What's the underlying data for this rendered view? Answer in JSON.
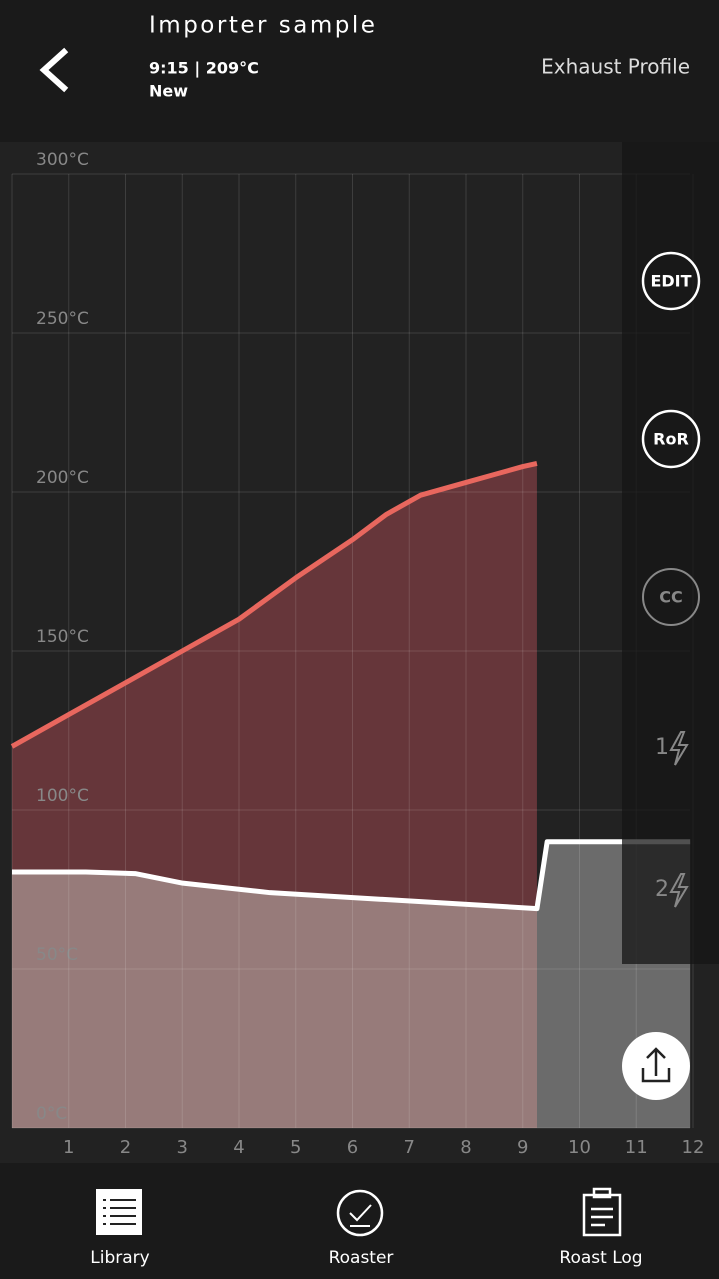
{
  "header": {
    "title": "Importer sample",
    "subtitle": "9:15 | 209°C",
    "status": "New",
    "profile": "Exhaust Profile"
  },
  "chart_data": {
    "type": "line",
    "xlim": [
      0,
      12
    ],
    "xticks": [
      1,
      2,
      3,
      4,
      5,
      6,
      7,
      8,
      9,
      10,
      11,
      12
    ],
    "ylim": [
      0,
      300
    ],
    "yticks": [
      {
        "value": 0,
        "label": "0°C"
      },
      {
        "value": 50,
        "label": "50°C"
      },
      {
        "value": 100,
        "label": "100°C"
      },
      {
        "value": 150,
        "label": "150°C"
      },
      {
        "value": 200,
        "label": "200°C"
      },
      {
        "value": 250,
        "label": "250°C"
      },
      {
        "value": 300,
        "label": "300°C"
      }
    ],
    "grid": true,
    "series": [
      {
        "color": "#e8675e",
        "x": [
          0,
          1,
          2,
          3,
          4,
          5,
          6,
          6.6,
          7.2,
          8,
          8.5,
          9,
          9.25
        ],
        "values": [
          120,
          130,
          140,
          150,
          160,
          173,
          185,
          193,
          199,
          203,
          205.5,
          208,
          209
        ]
      },
      {
        "color": "#ffffff",
        "x": [
          0,
          1.3,
          2.17,
          3.01,
          4.55,
          9.25,
          9.43,
          11.95
        ],
        "values": [
          80.5,
          80.5,
          80,
          77,
          74,
          69,
          90,
          90
        ]
      }
    ]
  },
  "side_buttons": [
    "EDIT",
    "RoR",
    "CC",
    "1",
    "2"
  ],
  "nav": [
    "Library",
    "Roaster",
    "Roast Log"
  ]
}
